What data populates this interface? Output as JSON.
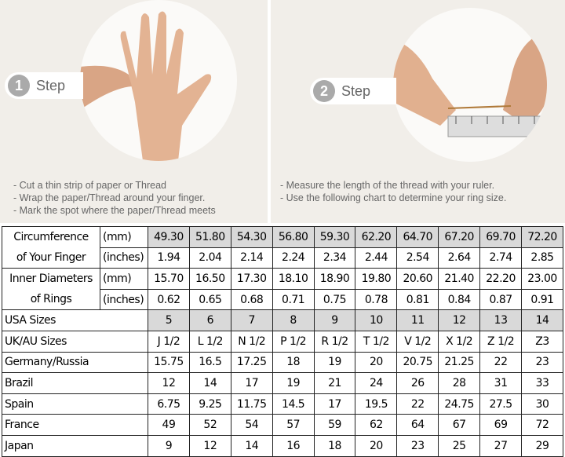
{
  "step1": {
    "number": "1",
    "label": "Step",
    "instructions": [
      "Cut a thin strip of paper or Thread",
      "Wrap the paper/Thread around your finger.",
      "Mark the spot where the paper/Thread meets"
    ]
  },
  "step2": {
    "number": "2",
    "label": "Step",
    "instructions": [
      "Measure the length of the thread with your ruler.",
      "Use the following chart to determine your ring size."
    ]
  },
  "table": {
    "circumference": {
      "label1": "Circumference",
      "label2": "of Your Finger",
      "mm_unit": "(mm)",
      "in_unit": "(inches)",
      "mm": [
        "49.30",
        "51.80",
        "54.30",
        "56.80",
        "59.30",
        "62.20",
        "64.70",
        "67.20",
        "69.70",
        "72.20"
      ],
      "inches": [
        "1.94",
        "2.04",
        "2.14",
        "2.24",
        "2.34",
        "2.44",
        "2.54",
        "2.64",
        "2.74",
        "2.85"
      ]
    },
    "diameter": {
      "label1": "Inner Diameters",
      "label2": "of Rings",
      "mm_unit": "(mm)",
      "in_unit": "(inches)",
      "mm": [
        "15.70",
        "16.50",
        "17.30",
        "18.10",
        "18.90",
        "19.80",
        "20.60",
        "21.40",
        "22.20",
        "23.00"
      ],
      "inches": [
        "0.62",
        "0.65",
        "0.68",
        "0.71",
        "0.75",
        "0.78",
        "0.81",
        "0.84",
        "0.87",
        "0.91"
      ]
    },
    "rows": [
      {
        "label": "USA Sizes",
        "values": [
          "5",
          "6",
          "7",
          "8",
          "9",
          "10",
          "11",
          "12",
          "13",
          "14"
        ],
        "highlight": true
      },
      {
        "label": "UK/AU Sizes",
        "values": [
          "J 1/2",
          "L 1/2",
          "N 1/2",
          "P 1/2",
          "R 1/2",
          "T 1/2",
          "V 1/2",
          "X 1/2",
          "Z 1/2",
          "Z3"
        ]
      },
      {
        "label": "Germany/Russia",
        "values": [
          "15.75",
          "16.5",
          "17.25",
          "18",
          "19",
          "20",
          "20.75",
          "21.25",
          "22",
          "23"
        ]
      },
      {
        "label": "Brazil",
        "values": [
          "12",
          "14",
          "17",
          "19",
          "21",
          "24",
          "26",
          "28",
          "31",
          "33"
        ]
      },
      {
        "label": "Spain",
        "values": [
          "6.75",
          "9.25",
          "11.75",
          "14.5",
          "17",
          "19.5",
          "22",
          "24.75",
          "27.5",
          "30"
        ]
      },
      {
        "label": "France",
        "values": [
          "49",
          "52",
          "54",
          "57",
          "59",
          "62",
          "64",
          "67",
          "69",
          "72"
        ]
      },
      {
        "label": "Japan",
        "values": [
          "9",
          "12",
          "14",
          "16",
          "18",
          "20",
          "23",
          "25",
          "27",
          "29"
        ]
      }
    ]
  }
}
